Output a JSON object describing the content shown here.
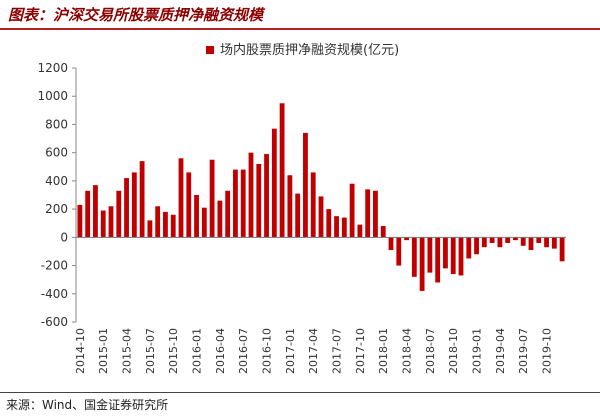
{
  "header": {
    "title": "图表：沪深交易所股票质押净融资规模"
  },
  "footer": {
    "source": "来源：Wind、国金证券研究所"
  },
  "colors": {
    "accent": "#b22222",
    "bar": "#c00000",
    "grid": "#cccccc"
  },
  "chart_data": {
    "type": "bar",
    "title": "",
    "xlabel": "",
    "ylabel": "",
    "ylim": [
      -600,
      1200
    ],
    "yticks": [
      1200,
      1000,
      800,
      600,
      400,
      200,
      0,
      -200,
      -400,
      -600
    ],
    "grid": false,
    "legend_position": "top-center",
    "x_tick_labels": [
      "2014-10",
      "2015-01",
      "2015-04",
      "2015-07",
      "2015-10",
      "2016-01",
      "2016-04",
      "2016-07",
      "2016-10",
      "2017-01",
      "2017-04",
      "2017-07",
      "2017-10",
      "2018-01",
      "2018-04",
      "2018-07",
      "2018-10",
      "2019-01",
      "2019-04",
      "2019-07",
      "2019-10"
    ],
    "categories": [
      "2014-10",
      "2014-11",
      "2014-12",
      "2015-01",
      "2015-02",
      "2015-03",
      "2015-04",
      "2015-05",
      "2015-06",
      "2015-07",
      "2015-08",
      "2015-09",
      "2015-10",
      "2015-11",
      "2015-12",
      "2016-01",
      "2016-02",
      "2016-03",
      "2016-04",
      "2016-05",
      "2016-06",
      "2016-07",
      "2016-08",
      "2016-09",
      "2016-10",
      "2016-11",
      "2016-12",
      "2017-01",
      "2017-02",
      "2017-03",
      "2017-04",
      "2017-05",
      "2017-06",
      "2017-07",
      "2017-08",
      "2017-09",
      "2017-10",
      "2017-11",
      "2017-12",
      "2018-01",
      "2018-02",
      "2018-03",
      "2018-04",
      "2018-05",
      "2018-06",
      "2018-07",
      "2018-08",
      "2018-09",
      "2018-10",
      "2018-11",
      "2018-12",
      "2019-01",
      "2019-02",
      "2019-03",
      "2019-04",
      "2019-05",
      "2019-06",
      "2019-07",
      "2019-08",
      "2019-09",
      "2019-10",
      "2019-11",
      "2019-12"
    ],
    "series": [
      {
        "name": "场内股票质押净融资规模(亿元)",
        "values": [
          230,
          330,
          370,
          190,
          220,
          330,
          420,
          460,
          540,
          120,
          220,
          180,
          160,
          560,
          460,
          300,
          210,
          550,
          260,
          330,
          480,
          480,
          600,
          520,
          590,
          770,
          950,
          440,
          310,
          740,
          460,
          290,
          200,
          150,
          140,
          380,
          90,
          340,
          330,
          80,
          -90,
          -200,
          -20,
          -280,
          -380,
          -250,
          -320,
          -220,
          -260,
          -270,
          -150,
          -120,
          -70,
          -40,
          -70,
          -40,
          -20,
          -60,
          -90,
          -40,
          -70,
          -80,
          -170
        ]
      }
    ]
  }
}
